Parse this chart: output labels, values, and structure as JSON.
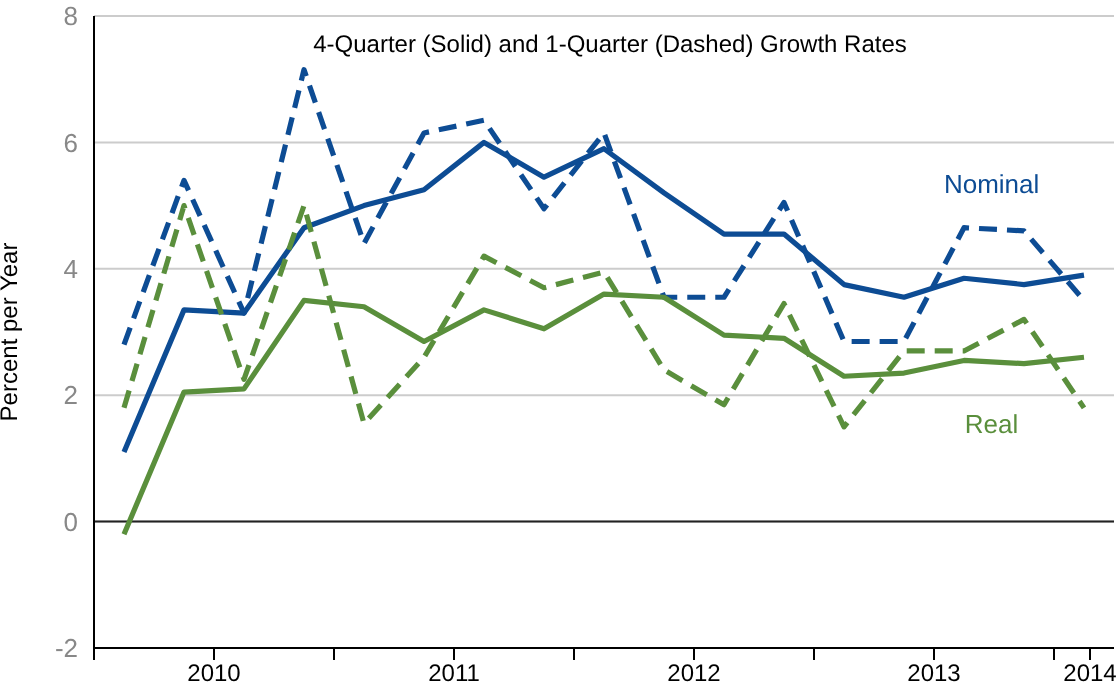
{
  "chart_data": {
    "type": "line",
    "title": "4-Quarter (Solid) and 1-Quarter (Dashed) Growth Rates",
    "ylabel": "Percent per Year",
    "x": [
      2010.125,
      2010.375,
      2010.625,
      2010.875,
      2011.125,
      2011.375,
      2011.625,
      2011.875,
      2012.125,
      2012.375,
      2012.625,
      2012.875,
      2013.125,
      2013.375,
      2013.625,
      2013.875,
      2014.125
    ],
    "xlim": [
      2010,
      2014.25
    ],
    "xticks": [
      {
        "value": 2010,
        "label": null
      },
      {
        "value": 2010.5,
        "label": "2010"
      },
      {
        "value": 2011,
        "label": null
      },
      {
        "value": 2011.5,
        "label": "2011"
      },
      {
        "value": 2012,
        "label": null
      },
      {
        "value": 2012.5,
        "label": "2012"
      },
      {
        "value": 2013,
        "label": null
      },
      {
        "value": 2013.5,
        "label": "2013"
      },
      {
        "value": 2014,
        "label": null
      },
      {
        "value": 2014.15,
        "label": "2014"
      }
    ],
    "ylim": [
      -2,
      8
    ],
    "yticks": [
      -2,
      0,
      2,
      4,
      6,
      8
    ],
    "grid": "y",
    "legend": false,
    "ref_lines": [
      {
        "axis": "y",
        "value": 0,
        "color": "#222222"
      }
    ],
    "series": [
      {
        "name": "Nominal",
        "color": "#0d4c94",
        "line_style": "solid",
        "values": [
          1.1,
          3.35,
          3.3,
          4.65,
          5.0,
          5.25,
          6.0,
          5.45,
          5.9,
          5.2,
          4.55,
          4.55,
          3.75,
          3.55,
          3.85,
          3.75,
          3.9
        ]
      },
      {
        "color": "#0d4c94",
        "line_style": "dashed",
        "values": [
          2.8,
          5.4,
          3.3,
          7.15,
          4.4,
          6.15,
          6.35,
          4.95,
          6.15,
          3.55,
          3.55,
          5.05,
          2.85,
          2.85,
          4.65,
          4.6,
          3.5
        ]
      },
      {
        "name": "Real",
        "color": "#5a8f3c",
        "line_style": "solid",
        "values": [
          -0.2,
          2.05,
          2.1,
          3.5,
          3.4,
          2.85,
          3.35,
          3.05,
          3.6,
          3.55,
          2.95,
          2.9,
          2.3,
          2.35,
          2.55,
          2.5,
          2.6
        ]
      },
      {
        "color": "#5a8f3c",
        "line_style": "dashed",
        "values": [
          1.8,
          5.0,
          2.25,
          5.0,
          1.55,
          2.6,
          4.2,
          3.7,
          3.95,
          2.4,
          1.85,
          3.45,
          1.5,
          2.7,
          2.7,
          3.2,
          1.8
        ]
      }
    ],
    "marker": "none"
  }
}
